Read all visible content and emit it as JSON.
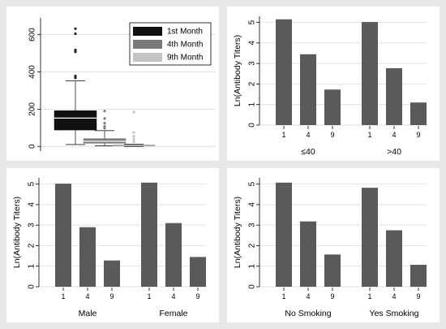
{
  "colors": {
    "outer_bg": "#e8e8e8",
    "panel_bg": "#ffffff",
    "bar": "#5a5a5a",
    "box_month1": "#111111",
    "box_month4": "#7a7a7a",
    "box_month9": "#c4c4c4",
    "box_median": "#ffffff",
    "axis": "#000000"
  },
  "chart_data": [
    {
      "id": "boxplot",
      "type": "box",
      "title": "",
      "xlabel": "",
      "ylabel": "",
      "ylim": [
        -25,
        690
      ],
      "yticks": [
        0,
        200,
        400,
        600
      ],
      "grid": true,
      "legend": {
        "position": "top-right",
        "entries": [
          "1st Month",
          "4th Month",
          "9th Month"
        ]
      },
      "series": [
        {
          "name": "1st Month",
          "whisker_low": 10,
          "q1": 88,
          "median": 152,
          "q3": 192,
          "whisker_high": 352,
          "outliers": [
            368,
            378,
            508,
            518,
            605,
            632
          ]
        },
        {
          "name": "4th Month",
          "whisker_low": 3,
          "q1": 17,
          "median": 28,
          "q3": 42,
          "whisker_high": 85,
          "outliers": [
            98,
            108,
            125,
            150,
            190
          ]
        },
        {
          "name": "9th Month",
          "whisker_low": 0,
          "q1": 2,
          "median": 5,
          "q3": 9,
          "whisker_high": 12,
          "outliers": [
            25,
            40,
            55,
            75,
            185
          ]
        }
      ]
    },
    {
      "id": "age",
      "type": "bar",
      "title": "",
      "ylabel": "Ln(Antibody Titers)",
      "ylim": [
        0,
        5.3
      ],
      "yticks": [
        0,
        1,
        2,
        3,
        4,
        5
      ],
      "grid": true,
      "categories": [
        "1",
        "4",
        "9"
      ],
      "groups": [
        {
          "name": "≤40",
          "values": [
            5.15,
            3.45,
            1.73
          ]
        },
        {
          "name": ">40",
          "values": [
            5.02,
            2.77,
            1.1
          ]
        }
      ]
    },
    {
      "id": "sex",
      "type": "bar",
      "title": "",
      "ylabel": "Ln(Antibody Titers)",
      "ylim": [
        0,
        5.3
      ],
      "yticks": [
        0,
        1,
        2,
        3,
        4,
        5
      ],
      "grid": true,
      "categories": [
        "1",
        "4",
        "9"
      ],
      "groups": [
        {
          "name": "Male",
          "values": [
            5.02,
            2.9,
            1.28
          ]
        },
        {
          "name": "Female",
          "values": [
            5.07,
            3.1,
            1.45
          ]
        }
      ]
    },
    {
      "id": "smoking",
      "type": "bar",
      "title": "",
      "ylabel": "Ln(Antibody Titers)",
      "ylim": [
        0,
        5.3
      ],
      "yticks": [
        0,
        1,
        2,
        3,
        4,
        5
      ],
      "grid": true,
      "categories": [
        "1",
        "4",
        "9"
      ],
      "groups": [
        {
          "name": "No Smoking",
          "values": [
            5.07,
            3.18,
            1.57
          ]
        },
        {
          "name": "Yes Smoking",
          "values": [
            4.82,
            2.75,
            1.07
          ]
        }
      ]
    }
  ]
}
